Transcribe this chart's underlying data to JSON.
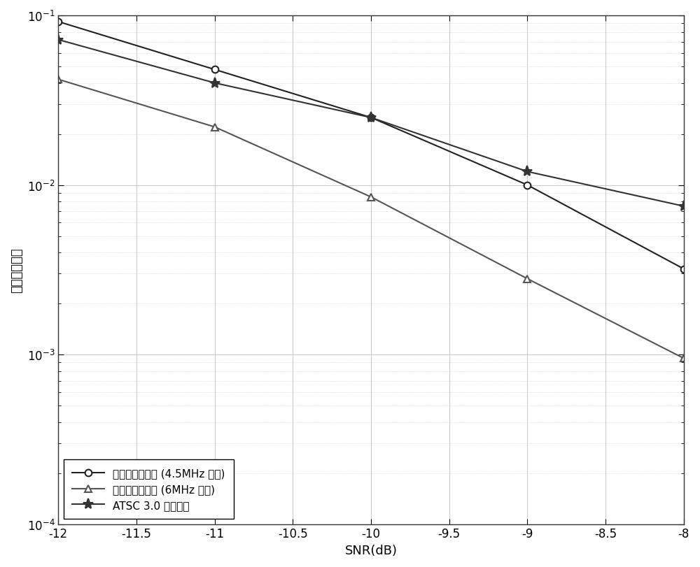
{
  "snr": [
    -12,
    -11,
    -10,
    -9,
    -8
  ],
  "series": [
    {
      "label": "所提的前导符号 (4.5MHz 带宽)",
      "values": [
        0.092,
        0.048,
        0.025,
        0.01,
        0.0032
      ],
      "marker": "o",
      "color": "#222222",
      "linewidth": 1.5,
      "markersize": 7,
      "markerfacecolor": "white"
    },
    {
      "label": "所提的前导符号 (6MHz 带宽)",
      "values": [
        0.042,
        0.022,
        0.0085,
        0.0028,
        0.00095
      ],
      "marker": "^",
      "color": "#555555",
      "linewidth": 1.5,
      "markersize": 7,
      "markerfacecolor": "white"
    },
    {
      "label": "ATSC 3.0 前导符号",
      "values": [
        0.072,
        0.04,
        0.025,
        0.012,
        0.0075
      ],
      "marker": "*",
      "color": "#333333",
      "linewidth": 1.5,
      "markersize": 11,
      "markerfacecolor": "#333333"
    }
  ],
  "xlabel": "SNR(dB)",
  "ylabel": "解信令错误率",
  "xlim": [
    -12,
    -8
  ],
  "ylim": [
    0.0001,
    0.1
  ],
  "xticks": [
    -12,
    -11.5,
    -11,
    -10.5,
    -10,
    -9.5,
    -9,
    -8.5,
    -8
  ],
  "legend_loc": "lower left",
  "grid_color": "#cccccc",
  "background_color": "#ffffff"
}
